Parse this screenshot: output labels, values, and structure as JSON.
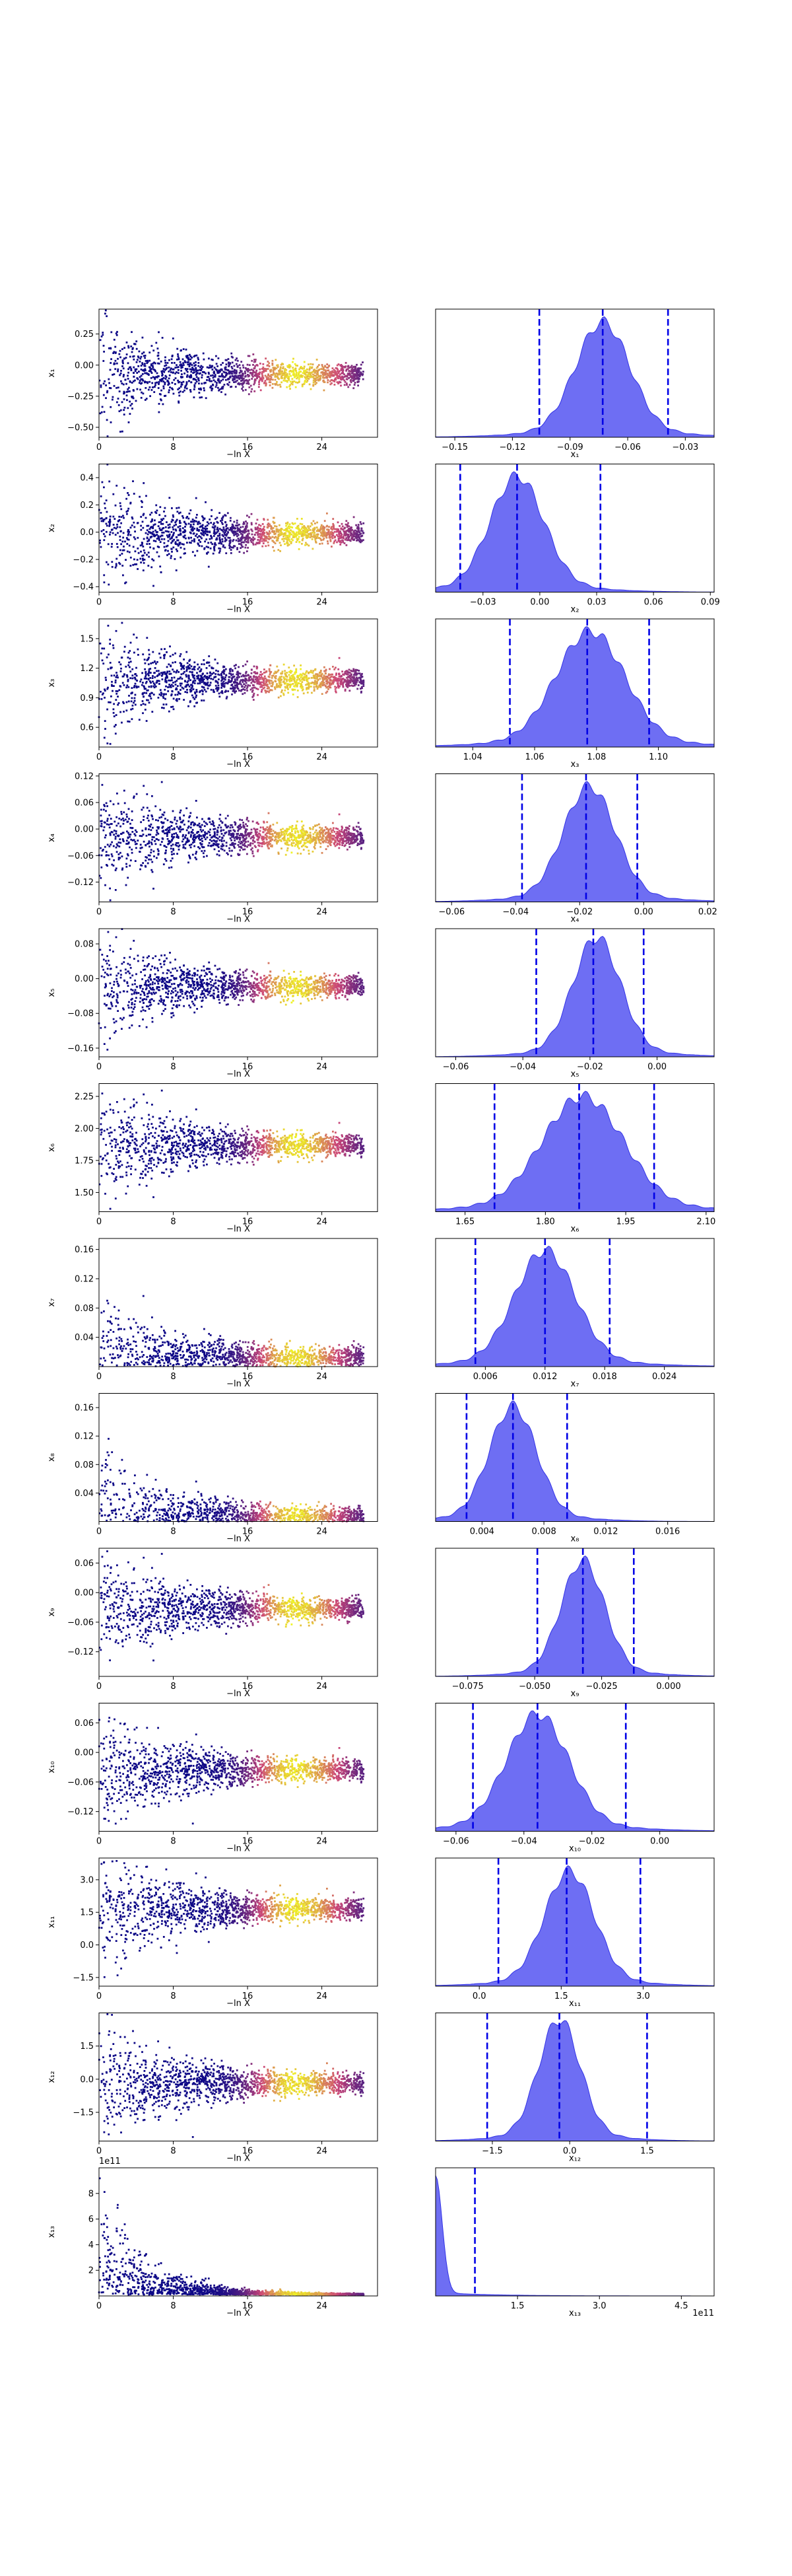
{
  "figure": {
    "xlabel_left": "−ln X",
    "sci_offset_last": "1e11",
    "colors": {
      "kde_fill": "#6666f2",
      "kde_edge": "#3333e6",
      "quantile_line": "#0000e6",
      "scatter_low": "#0d0887",
      "scatter_mid": "#cc4778",
      "scatter_high": "#f0f921"
    }
  },
  "chart_data": [
    {
      "type": "scatter",
      "param": "x1",
      "ylabel": "x₁",
      "xlabel": "−ln X",
      "xticks": [
        "0",
        "8",
        "16",
        "24"
      ],
      "xlim": [
        0,
        30
      ],
      "yticks": [
        "0.25",
        "0.00",
        "−0.25",
        "−0.50"
      ],
      "ytick_vals": [
        0.25,
        0,
        -0.25,
        -0.5
      ],
      "ylim": [
        -0.58,
        0.45
      ],
      "kde": {
        "xlabel": "x₁",
        "xticks": [
          "−0.15",
          "−0.12",
          "−0.09",
          "−0.06",
          "−0.03"
        ],
        "xtick_vals": [
          -0.15,
          -0.12,
          -0.09,
          -0.06,
          -0.03
        ],
        "xlim": [
          -0.16,
          -0.015
        ],
        "mean": -0.073,
        "sd": 0.014,
        "quantiles": [
          -0.106,
          -0.073,
          -0.039
        ]
      }
    },
    {
      "type": "scatter",
      "param": "x2",
      "ylabel": "x₂",
      "xlabel": "−ln X",
      "xticks": [
        "0",
        "8",
        "16",
        "24"
      ],
      "xlim": [
        0,
        30
      ],
      "yticks": [
        "0.4",
        "0.2",
        "0.0",
        "−0.2",
        "−0.4"
      ],
      "ytick_vals": [
        0.4,
        0.2,
        0,
        -0.2,
        -0.4
      ],
      "ylim": [
        -0.44,
        0.5
      ],
      "kde": {
        "xlabel": "x₂",
        "xticks": [
          "−0.03",
          "0.00",
          "0.03",
          "0.06",
          "0.09"
        ],
        "xtick_vals": [
          -0.03,
          0,
          0.03,
          0.06,
          0.09
        ],
        "xlim": [
          -0.055,
          0.092
        ],
        "mean": -0.012,
        "sd": 0.014,
        "quantiles": [
          -0.042,
          -0.012,
          0.032
        ]
      }
    },
    {
      "type": "scatter",
      "param": "x3",
      "ylabel": "x₃",
      "xlabel": "−ln X",
      "xticks": [
        "0",
        "8",
        "16",
        "24"
      ],
      "xlim": [
        0,
        30
      ],
      "yticks": [
        "1.5",
        "1.2",
        "0.9",
        "0.6"
      ],
      "ytick_vals": [
        1.5,
        1.2,
        0.9,
        0.6
      ],
      "ylim": [
        0.4,
        1.7
      ],
      "kde": {
        "xlabel": "x₃",
        "xticks": [
          "1.04",
          "1.06",
          "1.08",
          "1.10"
        ],
        "xtick_vals": [
          1.04,
          1.06,
          1.08,
          1.1
        ],
        "xlim": [
          1.028,
          1.118
        ],
        "mean": 1.078,
        "sd": 0.011,
        "quantiles": [
          1.052,
          1.077,
          1.097
        ]
      }
    },
    {
      "type": "scatter",
      "param": "x4",
      "ylabel": "x₄",
      "xlabel": "−ln X",
      "xticks": [
        "0",
        "8",
        "16",
        "24"
      ],
      "xlim": [
        0,
        30
      ],
      "yticks": [
        "0.12",
        "0.06",
        "0.00",
        "−0.06",
        "−0.12"
      ],
      "ytick_vals": [
        0.12,
        0.06,
        0,
        -0.06,
        -0.12
      ],
      "ylim": [
        -0.165,
        0.125
      ],
      "kde": {
        "xlabel": "x₄",
        "xticks": [
          "−0.06",
          "−0.04",
          "−0.02",
          "0.00",
          "0.02"
        ],
        "xtick_vals": [
          -0.06,
          -0.04,
          -0.02,
          0,
          0.02
        ],
        "xlim": [
          -0.065,
          0.022
        ],
        "mean": -0.017,
        "sd": 0.008,
        "quantiles": [
          -0.038,
          -0.018,
          -0.002
        ]
      }
    },
    {
      "type": "scatter",
      "param": "x5",
      "ylabel": "x₅",
      "xlabel": "−ln X",
      "xticks": [
        "0",
        "8",
        "16",
        "24"
      ],
      "xlim": [
        0,
        30
      ],
      "yticks": [
        "0.08",
        "0.00",
        "−0.08",
        "−0.16"
      ],
      "ytick_vals": [
        0.08,
        0,
        -0.08,
        -0.16
      ],
      "ylim": [
        -0.18,
        0.115
      ],
      "kde": {
        "xlabel": "x₅",
        "xticks": [
          "−0.06",
          "−0.04",
          "−0.02",
          "0.00"
        ],
        "xtick_vals": [
          -0.06,
          -0.04,
          -0.02,
          0
        ],
        "xlim": [
          -0.066,
          0.017
        ],
        "mean": -0.018,
        "sd": 0.007,
        "quantiles": [
          -0.036,
          -0.019,
          -0.004
        ]
      }
    },
    {
      "type": "scatter",
      "param": "x6",
      "ylabel": "x₆",
      "xlabel": "−ln X",
      "xticks": [
        "0",
        "8",
        "16",
        "24"
      ],
      "xlim": [
        0,
        30
      ],
      "yticks": [
        "2.25",
        "2.00",
        "1.75",
        "1.50"
      ],
      "ytick_vals": [
        2.25,
        2.0,
        1.75,
        1.5
      ],
      "ylim": [
        1.35,
        2.35
      ],
      "kde": {
        "xlabel": "x₆",
        "xticks": [
          "1.65",
          "1.80",
          "1.95",
          "2.10"
        ],
        "xtick_vals": [
          1.65,
          1.8,
          1.95,
          2.1
        ],
        "xlim": [
          1.595,
          2.115
        ],
        "mean": 1.87,
        "sd": 0.075,
        "quantiles": [
          1.705,
          1.863,
          2.003
        ]
      }
    },
    {
      "type": "scatter",
      "param": "x7",
      "ylabel": "x₇",
      "xlabel": "−ln X",
      "xticks": [
        "0",
        "8",
        "16",
        "24"
      ],
      "xlim": [
        0,
        30
      ],
      "yticks": [
        "0.16",
        "0.12",
        "0.08",
        "0.04"
      ],
      "ytick_vals": [
        0.16,
        0.12,
        0.08,
        0.04
      ],
      "ylim": [
        0,
        0.175
      ],
      "kde": {
        "xlabel": "x₇",
        "xticks": [
          "0.006",
          "0.012",
          "0.018",
          "0.024"
        ],
        "xtick_vals": [
          0.006,
          0.012,
          0.018,
          0.024
        ],
        "xlim": [
          0.001,
          0.029
        ],
        "mean": 0.012,
        "sd": 0.003,
        "quantiles": [
          0.005,
          0.012,
          0.0185
        ]
      }
    },
    {
      "type": "scatter",
      "param": "x8",
      "ylabel": "x₈",
      "xlabel": "−ln X",
      "xticks": [
        "0",
        "8",
        "16",
        "24"
      ],
      "xlim": [
        0,
        30
      ],
      "yticks": [
        "0.16",
        "0.12",
        "0.08",
        "0.04"
      ],
      "ytick_vals": [
        0.16,
        0.12,
        0.08,
        0.04
      ],
      "ylim": [
        0,
        0.18
      ],
      "kde": {
        "xlabel": "x₈",
        "xticks": [
          "0.004",
          "0.008",
          "0.012",
          "0.016"
        ],
        "xtick_vals": [
          0.004,
          0.008,
          0.012,
          0.016
        ],
        "xlim": [
          0.001,
          0.019
        ],
        "mean": 0.006,
        "sd": 0.0015,
        "quantiles": [
          0.003,
          0.006,
          0.0095
        ]
      }
    },
    {
      "type": "scatter",
      "param": "x9",
      "ylabel": "x₉",
      "xlabel": "−ln X",
      "xticks": [
        "0",
        "8",
        "16",
        "24"
      ],
      "xlim": [
        0,
        30
      ],
      "yticks": [
        "0.06",
        "0.00",
        "−0.06",
        "−0.12"
      ],
      "ytick_vals": [
        0.06,
        0,
        -0.06,
        -0.12
      ],
      "ylim": [
        -0.17,
        0.09
      ],
      "kde": {
        "xlabel": "x₉",
        "xticks": [
          "−0.075",
          "−0.050",
          "−0.025",
          "0.000"
        ],
        "xtick_vals": [
          -0.075,
          -0.05,
          -0.025,
          0
        ],
        "xlim": [
          -0.087,
          0.017
        ],
        "mean": -0.032,
        "sd": 0.008,
        "quantiles": [
          -0.049,
          -0.032,
          -0.013
        ]
      }
    },
    {
      "type": "scatter",
      "param": "x10",
      "ylabel": "x₁₀",
      "xlabel": "−ln X",
      "xticks": [
        "0",
        "8",
        "16",
        "24"
      ],
      "xlim": [
        0,
        30
      ],
      "yticks": [
        "0.06",
        "0.00",
        "−0.06",
        "−0.12"
      ],
      "ytick_vals": [
        0.06,
        0,
        -0.06,
        -0.12
      ],
      "ylim": [
        -0.16,
        0.1
      ],
      "kde": {
        "xlabel": "x₁₀",
        "xticks": [
          "−0.06",
          "−0.04",
          "−0.02",
          "0.00"
        ],
        "xtick_vals": [
          -0.06,
          -0.04,
          -0.02,
          0
        ],
        "xlim": [
          -0.066,
          0.016
        ],
        "mean": -0.036,
        "sd": 0.009,
        "quantiles": [
          -0.055,
          -0.036,
          -0.01
        ]
      }
    },
    {
      "type": "scatter",
      "param": "x11",
      "ylabel": "x₁₁",
      "xlabel": "−ln X",
      "xticks": [
        "0",
        "8",
        "16",
        "24"
      ],
      "xlim": [
        0,
        30
      ],
      "yticks": [
        "3.0",
        "1.5",
        "0.0",
        "−1.5"
      ],
      "ytick_vals": [
        3.0,
        1.5,
        0,
        -1.5
      ],
      "ylim": [
        -1.9,
        4.0
      ],
      "kde": {
        "xlabel": "x₁₁",
        "xticks": [
          "0.0",
          "1.5",
          "3.0"
        ],
        "xtick_vals": [
          0,
          1.5,
          3.0
        ],
        "xlim": [
          -0.8,
          4.3
        ],
        "mean": 1.65,
        "sd": 0.45,
        "quantiles": [
          0.35,
          1.6,
          2.95
        ]
      }
    },
    {
      "type": "scatter",
      "param": "x12",
      "ylabel": "x₁₂",
      "xlabel": "−ln X",
      "xticks": [
        "0",
        "8",
        "16",
        "24"
      ],
      "xlim": [
        0,
        30
      ],
      "yticks": [
        "1.5",
        "0.0",
        "−1.5"
      ],
      "ytick_vals": [
        1.5,
        0,
        -1.5
      ],
      "ylim": [
        -2.8,
        3.0
      ],
      "kde": {
        "xlabel": "x₁₂",
        "xticks": [
          "−1.5",
          "0.0",
          "1.5"
        ],
        "xtick_vals": [
          -1.5,
          0,
          1.5
        ],
        "xlim": [
          -2.6,
          2.8
        ],
        "mean": -0.2,
        "sd": 0.4,
        "quantiles": [
          -1.6,
          -0.2,
          1.5
        ]
      }
    },
    {
      "type": "scatter",
      "param": "x13",
      "ylabel": "x₁₃",
      "xlabel": "−ln X",
      "xticks": [
        "0",
        "8",
        "16",
        "24"
      ],
      "xlim": [
        0,
        30
      ],
      "yticks": [
        "8",
        "6",
        "4",
        "2"
      ],
      "ytick_vals": [
        8,
        6,
        4,
        2
      ],
      "ylim": [
        0,
        10
      ],
      "sci_offset": "1e11",
      "kde": {
        "xlabel": "x₁₃",
        "xticks": [
          "1.5",
          "3.0",
          "4.5"
        ],
        "xtick_vals": [
          1.5,
          3.0,
          4.5
        ],
        "xlim": [
          0,
          5.1
        ],
        "mean": 0.05,
        "sd": 0.12,
        "quantiles": [
          0.72
        ],
        "halfnormal": true,
        "sci_offset": "1e11"
      }
    }
  ]
}
